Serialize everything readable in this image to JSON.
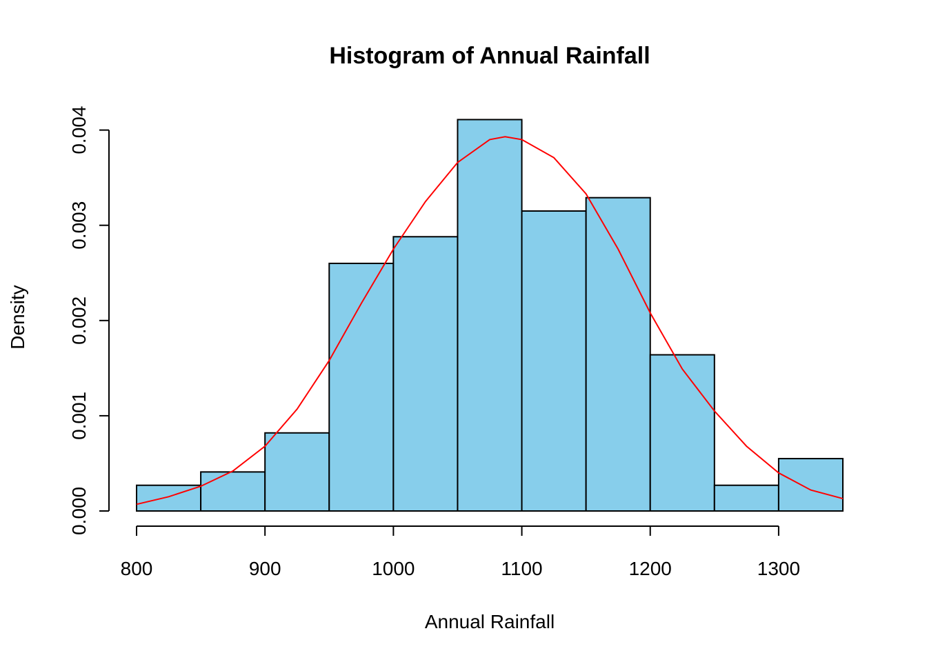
{
  "chart_data": {
    "type": "bar",
    "title": "Histogram of Annual Rainfall",
    "xlabel": "Annual Rainfall",
    "ylabel": "Density",
    "bin_edges": [
      800,
      850,
      900,
      950,
      1000,
      1050,
      1100,
      1150,
      1200,
      1250,
      1300,
      1350
    ],
    "density": [
      0.00027,
      0.00041,
      0.00082,
      0.0026,
      0.00288,
      0.00411,
      0.00315,
      0.00329,
      0.00164,
      0.00027,
      0.00055
    ],
    "xlim": [
      800,
      1350
    ],
    "ylim": [
      0,
      0.0042
    ],
    "x_ticks": [
      800,
      900,
      1000,
      1100,
      1200,
      1300
    ],
    "x_tick_labels": [
      "800",
      "900",
      "1000",
      "1100",
      "1200",
      "1300"
    ],
    "y_ticks": [
      0,
      0.001,
      0.002,
      0.003,
      0.004
    ],
    "y_tick_labels": [
      "0.000",
      "0.001",
      "0.002",
      "0.003",
      "0.004"
    ],
    "density_curve": {
      "type": "line",
      "x": [
        800,
        825,
        850,
        875,
        900,
        925,
        950,
        975,
        1000,
        1025,
        1050,
        1075,
        1087,
        1100,
        1125,
        1150,
        1175,
        1200,
        1225,
        1250,
        1275,
        1300,
        1325,
        1350
      ],
      "y": [
        7e-05,
        0.00015,
        0.00026,
        0.00042,
        0.00068,
        0.00107,
        0.00158,
        0.00218,
        0.00275,
        0.00325,
        0.00366,
        0.0039,
        0.00393,
        0.0039,
        0.00371,
        0.00333,
        0.00275,
        0.00208,
        0.00149,
        0.00105,
        0.00068,
        0.0004,
        0.00022,
        0.00013
      ],
      "color": "#ff0000"
    },
    "bar_fill": "#87ceeb",
    "grid": false,
    "legend": "none"
  }
}
